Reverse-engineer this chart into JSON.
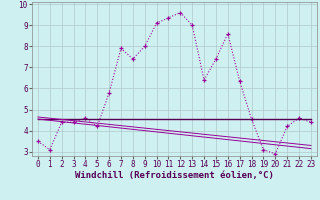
{
  "xlabel": "Windchill (Refroidissement éolien,°C)",
  "background_color": "#cff0f0",
  "grid_color": "#b0c8c8",
  "line_color": "#990099",
  "xlim": [
    -0.5,
    23.5
  ],
  "ylim": [
    2.8,
    10.1
  ],
  "yticks": [
    3,
    4,
    5,
    6,
    7,
    8,
    9,
    10
  ],
  "xticks": [
    0,
    1,
    2,
    3,
    4,
    5,
    6,
    7,
    8,
    9,
    10,
    11,
    12,
    13,
    14,
    15,
    16,
    17,
    18,
    19,
    20,
    21,
    22,
    23
  ],
  "series1_x": [
    0,
    1,
    2,
    3,
    4,
    5,
    6,
    7,
    8,
    9,
    10,
    11,
    12,
    13,
    14,
    15,
    16,
    17,
    18,
    19,
    20,
    21,
    22,
    23
  ],
  "series1_y": [
    3.5,
    3.1,
    4.4,
    4.4,
    4.6,
    4.2,
    5.8,
    7.9,
    7.4,
    8.0,
    9.1,
    9.35,
    9.6,
    9.0,
    6.4,
    7.4,
    8.6,
    6.35,
    4.55,
    3.1,
    2.9,
    4.2,
    4.6,
    4.4
  ],
  "series2_x": [
    0,
    5,
    19,
    23
  ],
  "series2_y": [
    4.55,
    4.55,
    4.55,
    4.55
  ],
  "series3_x": [
    0,
    23
  ],
  "series3_y": [
    4.65,
    3.3
  ],
  "series4_x": [
    0,
    23
  ],
  "series4_y": [
    4.55,
    3.15
  ],
  "axis_fontsize": 6.5,
  "tick_fontsize": 5.5
}
